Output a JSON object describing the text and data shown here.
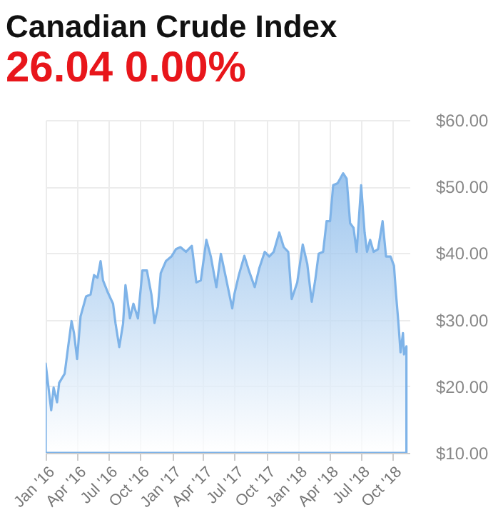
{
  "chart_data": {
    "type": "area",
    "title": "Canadian Crude Index",
    "subtitle": "26.04 0.00%",
    "x": [
      "2016-01-01",
      "2016-01-17",
      "2016-01-24",
      "2016-02-03",
      "2016-02-09",
      "2016-02-25",
      "2016-03-06",
      "2016-03-16",
      "2016-03-23",
      "2016-04-01",
      "2016-04-11",
      "2016-04-27",
      "2016-05-10",
      "2016-05-20",
      "2016-05-30",
      "2016-06-08",
      "2016-06-15",
      "2016-06-28",
      "2016-07-14",
      "2016-07-21",
      "2016-08-01",
      "2016-08-12",
      "2016-08-19",
      "2016-09-01",
      "2016-09-11",
      "2016-09-24",
      "2016-10-07",
      "2016-10-20",
      "2016-11-02",
      "2016-11-11",
      "2016-11-21",
      "2016-11-29",
      "2016-12-14",
      "2016-12-30",
      "2017-01-12",
      "2017-01-25",
      "2017-02-10",
      "2017-02-27",
      "2017-03-12",
      "2017-03-25",
      "2017-04-10",
      "2017-04-23",
      "2017-05-09",
      "2017-05-22",
      "2017-06-04",
      "2017-06-24",
      "2017-06-30",
      "2017-07-13",
      "2017-07-29",
      "2017-08-11",
      "2017-08-28",
      "2017-09-10",
      "2017-09-26",
      "2017-10-09",
      "2017-10-22",
      "2017-11-07",
      "2017-11-20",
      "2017-12-03",
      "2017-12-13",
      "2017-12-29",
      "2018-01-14",
      "2018-01-27",
      "2018-02-09",
      "2018-02-19",
      "2018-03-01",
      "2018-03-14",
      "2018-03-24",
      "2018-04-03",
      "2018-04-12",
      "2018-04-25",
      "2018-05-11",
      "2018-05-21",
      "2018-05-31",
      "2018-06-10",
      "2018-06-19",
      "2018-07-02",
      "2018-07-12",
      "2018-07-19",
      "2018-07-28",
      "2018-08-07",
      "2018-08-20",
      "2018-09-02",
      "2018-09-12",
      "2018-09-25",
      "2018-10-05",
      "2018-10-11",
      "2018-10-18",
      "2018-10-24",
      "2018-10-31",
      "2018-11-03",
      "2018-11-10"
    ],
    "series": [
      {
        "color": "#7eb3e8",
        "values": [
          23.4,
          16.4,
          19.8,
          17.6,
          20.5,
          21.9,
          25.9,
          29.8,
          28,
          24.1,
          30.5,
          33.5,
          33.8,
          36.7,
          36.3,
          38.8,
          35.9,
          34.2,
          32.4,
          29.5,
          25.9,
          29.4,
          35.2,
          30.2,
          32.4,
          30.2,
          37.4,
          37.4,
          33.8,
          29.5,
          32,
          37,
          38.8,
          39.5,
          40.6,
          40.9,
          40.2,
          41.1,
          35.6,
          35.9,
          42,
          39.5,
          34.9,
          39.9,
          36.7,
          31.7,
          33.8,
          36.7,
          39.6,
          37.4,
          34.9,
          37.7,
          40.2,
          39.5,
          40.2,
          43.1,
          40.9,
          40.2,
          33.1,
          35.6,
          41.3,
          38.4,
          32.7,
          35.9,
          39.9,
          40.2,
          44.8,
          44.8,
          50.2,
          50.5,
          52,
          51.2,
          44.5,
          43.8,
          40.2,
          50.2,
          43.1,
          40.2,
          42,
          40.2,
          40.6,
          44.8,
          39.5,
          39.5,
          38.1,
          33.8,
          29.4,
          25.1,
          28,
          24.8,
          26.0
        ]
      }
    ],
    "xlim": [
      "2016-01-01",
      "2018-11-19"
    ],
    "xticks": [
      {
        "value": "2016-01-01",
        "label": "Jan '16"
      },
      {
        "value": "2016-04-01",
        "label": "Apr '16"
      },
      {
        "value": "2016-07-01",
        "label": "Jul '16"
      },
      {
        "value": "2016-10-01",
        "label": "Oct '16"
      },
      {
        "value": "2017-01-01",
        "label": "Jan '17"
      },
      {
        "value": "2017-04-01",
        "label": "Apr '17"
      },
      {
        "value": "2017-07-01",
        "label": "Jul '17"
      },
      {
        "value": "2017-10-01",
        "label": "Oct '17"
      },
      {
        "value": "2018-01-01",
        "label": "Jan '18"
      },
      {
        "value": "2018-04-01",
        "label": "Apr '18"
      },
      {
        "value": "2018-07-01",
        "label": "Jul '18"
      },
      {
        "value": "2018-10-01",
        "label": "Oct '18"
      }
    ],
    "ylim": [
      10,
      60
    ],
    "yticks": [
      {
        "value": 10,
        "label": "$10.00"
      },
      {
        "value": 20,
        "label": "$20.00"
      },
      {
        "value": 30,
        "label": "$30.00"
      },
      {
        "value": 40,
        "label": "$40.00"
      },
      {
        "value": 50,
        "label": "$50.00"
      },
      {
        "value": 60,
        "label": "$60.00"
      }
    ],
    "grid": true
  }
}
